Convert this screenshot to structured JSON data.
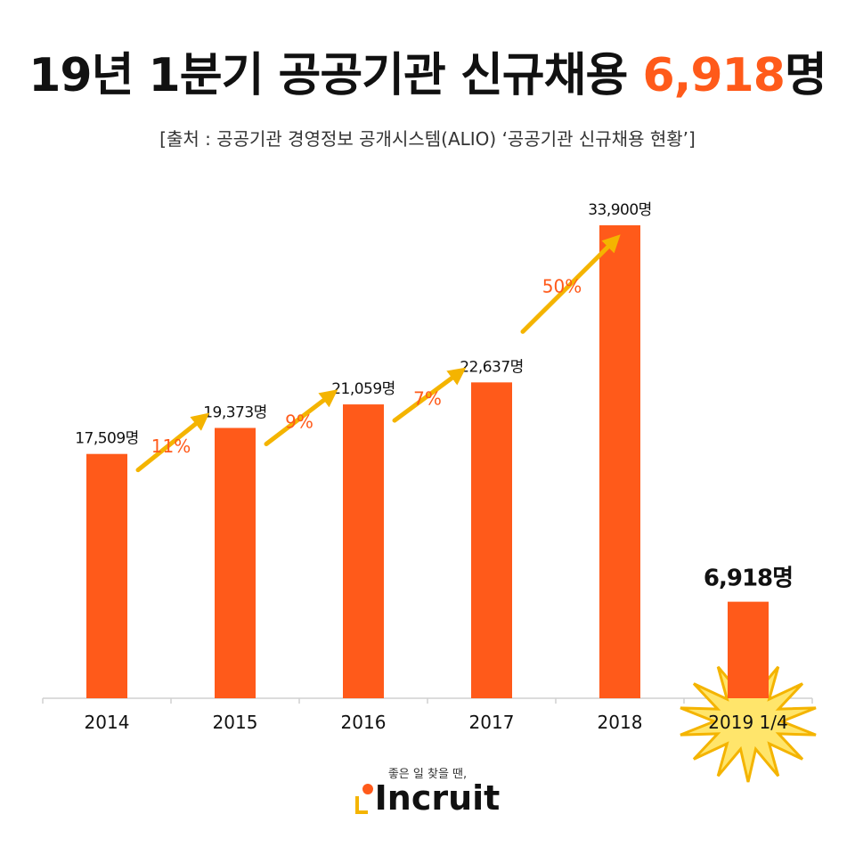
{
  "header": {
    "title_main": "19년 1분기 공공기관 신규채용 ",
    "title_accent": "6,918",
    "title_suffix": "명",
    "source": "[출처 : 공공기관 경영정보 공개시스템(ALIO) ‘공공기관 신규채용 현황’]"
  },
  "chart_data": {
    "type": "bar",
    "categories": [
      "2014",
      "2015",
      "2016",
      "2017",
      "2018",
      "2019 1/4"
    ],
    "values": [
      17509,
      19373,
      21059,
      22637,
      33900,
      6918
    ],
    "value_labels": [
      "17,509명",
      "19,373명",
      "21,059명",
      "22,637명",
      "33,900명",
      "6,918명"
    ],
    "growth_labels": [
      "11%",
      "9%",
      "7%",
      "50%"
    ],
    "ylim": [
      0,
      36000
    ],
    "bar_color": "#ff5a1a",
    "arrow_color": "#f4b400",
    "growth_color": "#ff5a1a",
    "starburst_color": "#ffe56b",
    "starburst_stroke": "#f4b400"
  },
  "brand": {
    "tagline": "좋은 일 찾을 땐,",
    "logo": "Incruit"
  }
}
